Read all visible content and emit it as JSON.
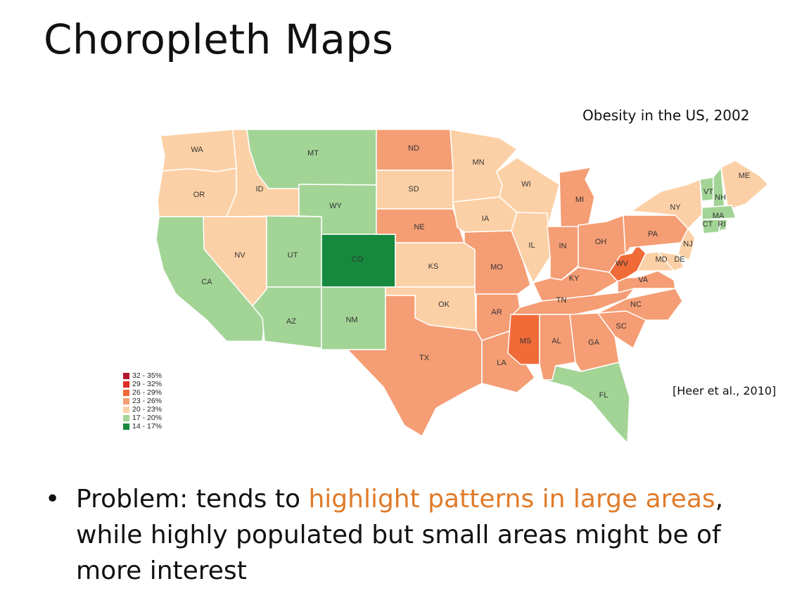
{
  "slide": {
    "title": "Choropleth Maps",
    "map_title": "Obesity in the US, 2002",
    "citation": "[Heer et al., 2010]"
  },
  "legend": [
    {
      "label": "32 - 35%",
      "color": "#b2182b"
    },
    {
      "label": "29 - 32%",
      "color": "#de2d26"
    },
    {
      "label": "26 - 29%",
      "color": "#f16b39"
    },
    {
      "label": "23 - 26%",
      "color": "#f59d74"
    },
    {
      "label": "20 - 23%",
      "color": "#fcd0a6"
    },
    {
      "label": "17 - 20%",
      "color": "#a2d496"
    },
    {
      "label": "14 - 17%",
      "color": "#16893e"
    }
  ],
  "states": [
    {
      "code": "WA",
      "bin": "20 - 23%"
    },
    {
      "code": "OR",
      "bin": "20 - 23%"
    },
    {
      "code": "ID",
      "bin": "20 - 23%"
    },
    {
      "code": "NV",
      "bin": "20 - 23%"
    },
    {
      "code": "CA",
      "bin": "17 - 20%"
    },
    {
      "code": "MT",
      "bin": "17 - 20%"
    },
    {
      "code": "WY",
      "bin": "17 - 20%"
    },
    {
      "code": "UT",
      "bin": "17 - 20%"
    },
    {
      "code": "CO",
      "bin": "14 - 17%"
    },
    {
      "code": "AZ",
      "bin": "17 - 20%"
    },
    {
      "code": "NM",
      "bin": "17 - 20%"
    },
    {
      "code": "ND",
      "bin": "23 - 26%"
    },
    {
      "code": "SD",
      "bin": "20 - 23%"
    },
    {
      "code": "NE",
      "bin": "23 - 26%"
    },
    {
      "code": "KS",
      "bin": "20 - 23%"
    },
    {
      "code": "OK",
      "bin": "20 - 23%"
    },
    {
      "code": "TX",
      "bin": "23 - 26%"
    },
    {
      "code": "MN",
      "bin": "20 - 23%"
    },
    {
      "code": "IA",
      "bin": "20 - 23%"
    },
    {
      "code": "MO",
      "bin": "23 - 26%"
    },
    {
      "code": "AR",
      "bin": "23 - 26%"
    },
    {
      "code": "LA",
      "bin": "23 - 26%"
    },
    {
      "code": "WI",
      "bin": "20 - 23%"
    },
    {
      "code": "IL",
      "bin": "20 - 23%"
    },
    {
      "code": "MI",
      "bin": "23 - 26%"
    },
    {
      "code": "IN",
      "bin": "23 - 26%"
    },
    {
      "code": "OH",
      "bin": "23 - 26%"
    },
    {
      "code": "KY",
      "bin": "23 - 26%"
    },
    {
      "code": "TN",
      "bin": "23 - 26%"
    },
    {
      "code": "MS",
      "bin": "26 - 29%"
    },
    {
      "code": "AL",
      "bin": "23 - 26%"
    },
    {
      "code": "GA",
      "bin": "23 - 26%"
    },
    {
      "code": "FL",
      "bin": "17 - 20%"
    },
    {
      "code": "SC",
      "bin": "23 - 26%"
    },
    {
      "code": "NC",
      "bin": "23 - 26%"
    },
    {
      "code": "VA",
      "bin": "23 - 26%"
    },
    {
      "code": "WV",
      "bin": "26 - 29%"
    },
    {
      "code": "PA",
      "bin": "23 - 26%"
    },
    {
      "code": "NY",
      "bin": "20 - 23%"
    },
    {
      "code": "NJ",
      "bin": "20 - 23%"
    },
    {
      "code": "MD",
      "bin": "20 - 23%"
    },
    {
      "code": "DE",
      "bin": "20 - 23%"
    },
    {
      "code": "VT",
      "bin": "17 - 20%"
    },
    {
      "code": "NH",
      "bin": "17 - 20%"
    },
    {
      "code": "ME",
      "bin": "20 - 23%"
    },
    {
      "code": "MA",
      "bin": "17 - 20%"
    },
    {
      "code": "CT",
      "bin": "17 - 20%"
    },
    {
      "code": "RI",
      "bin": "17 - 20%"
    }
  ],
  "bullet": {
    "lead": "Problem: tends to ",
    "highlight": "highlight patterns in large areas",
    "rest": ", while highly populated but small areas might be of more interest"
  }
}
